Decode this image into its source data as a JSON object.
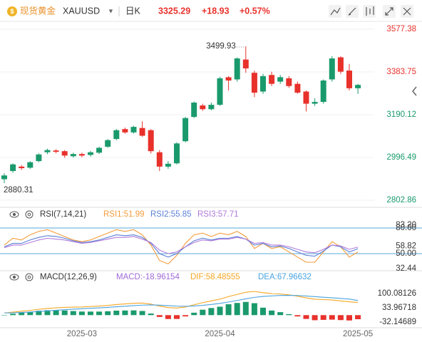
{
  "header": {
    "name": "现货黄金",
    "symbol": "XAUUSD",
    "period": "日K",
    "price": "3325.29",
    "change": "+18.93",
    "change_pct": "+0.57%"
  },
  "chart_data": [
    {
      "type": "candlestick",
      "categories": [
        null,
        null,
        null,
        null,
        null,
        null,
        null,
        null,
        null,
        "2025-03",
        null,
        null,
        null,
        null,
        null,
        null,
        null,
        null,
        null,
        null,
        null,
        null,
        null,
        null,
        null,
        "2025-04",
        null,
        null,
        null,
        null,
        null,
        null,
        null,
        null,
        null,
        null,
        null,
        null,
        null,
        null,
        null,
        "2025-05"
      ],
      "open": [
        2898,
        2935,
        2955,
        2950,
        2980,
        3020,
        3028,
        3025,
        3002,
        3012,
        3008,
        3018,
        3045,
        3080,
        3125,
        3110,
        3130,
        3120,
        3020,
        2955,
        2970,
        3070,
        3180,
        3232,
        3215,
        3235,
        3360,
        3350,
        3440,
        3380,
        3295,
        3370,
        3340,
        3355,
        3330,
        3295,
        3240,
        3248,
        3350,
        3450,
        3390,
        3310
      ],
      "high": [
        2925,
        2970,
        2962,
        2980,
        3015,
        3036,
        3034,
        3030,
        3018,
        3018,
        3026,
        3045,
        3080,
        3125,
        3132,
        3140,
        3160,
        3125,
        3030,
        2980,
        3065,
        3180,
        3250,
        3240,
        3245,
        3362,
        3365,
        3450,
        3499.93,
        3390,
        3375,
        3385,
        3370,
        3365,
        3340,
        3300,
        3265,
        3350,
        3455,
        3455,
        3420,
        3330
      ],
      "low": [
        2880.31,
        2928,
        2940,
        2945,
        2975,
        3012,
        3015,
        2995,
        2996,
        2998,
        3000,
        3012,
        3040,
        3075,
        3104,
        3105,
        3090,
        3015,
        2935,
        2945,
        2965,
        3065,
        3175,
        3208,
        3210,
        3230,
        3300,
        3340,
        3380,
        3270,
        3285,
        3320,
        3330,
        3312,
        3285,
        3205,
        3230,
        3240,
        3340,
        3375,
        3300,
        3285
      ],
      "close": [
        2915,
        2965,
        2948,
        2975,
        3010,
        3030,
        3022,
        3005,
        3012,
        3005,
        3020,
        3040,
        3075,
        3120,
        3110,
        3135,
        3095,
        3025,
        2955,
        2968,
        3060,
        3175,
        3245,
        3215,
        3235,
        3355,
        3345,
        3445,
        3400,
        3290,
        3365,
        3330,
        3360,
        3320,
        3290,
        3240,
        3248,
        3345,
        3445,
        3385,
        3310,
        3325.29
      ],
      "up_color": "#1a9a6c",
      "down_color": "#e8312b",
      "ylim": [
        2773.8,
        3612.9
      ],
      "yticks": [
        3577.38,
        3383.75,
        3190.12,
        2996.49,
        2802.86
      ],
      "grid": true
    },
    {
      "type": "line",
      "title": "RSI(7,14,21)",
      "series": [
        {
          "label": "RSI1:51.99",
          "color": "#f39c3c",
          "values": [
            60,
            68,
            66,
            72,
            76,
            78,
            74,
            70,
            66,
            64,
            66,
            70,
            74,
            78,
            76,
            78,
            72,
            60,
            42,
            38,
            48,
            62,
            72,
            74,
            70,
            74,
            72,
            76,
            70,
            56,
            62,
            56,
            58,
            52,
            46,
            40,
            40,
            52,
            64,
            58,
            46,
            51.99
          ]
        },
        {
          "label": "RSI2:55.85",
          "color": "#5b7fd6",
          "values": [
            58,
            62,
            62,
            66,
            69,
            71,
            70,
            68,
            65,
            63,
            64,
            66,
            69,
            72,
            71,
            72,
            69,
            62,
            50,
            46,
            50,
            58,
            65,
            68,
            66,
            68,
            68,
            70,
            67,
            60,
            62,
            58,
            59,
            56,
            52,
            48,
            47,
            53,
            60,
            58,
            52,
            55.85
          ]
        },
        {
          "label": "RSI3:57.71",
          "color": "#b07ad9",
          "values": [
            57,
            60,
            60,
            63,
            66,
            68,
            67,
            66,
            64,
            62,
            63,
            65,
            67,
            69,
            69,
            70,
            67,
            63,
            54,
            50,
            52,
            58,
            63,
            66,
            65,
            67,
            67,
            69,
            67,
            62,
            63,
            60,
            60,
            58,
            55,
            52,
            51,
            55,
            60,
            59,
            55,
            57.71
          ]
        }
      ],
      "ylim": [
        30,
        88.3
      ],
      "yticks": [
        {
          "value": 80,
          "label": "80.00"
        },
        {
          "value": 83.2,
          "label": "83.20"
        },
        58.82,
        {
          "value": 50,
          "label": "50.00"
        },
        32.44
      ],
      "hlines": [
        80,
        50
      ]
    },
    {
      "type": "macd",
      "title": "MACD(12,26,9)",
      "histogram": {
        "label": "MACD:-18.96154",
        "label_color": "#a06ad8",
        "values": [
          0,
          6.4,
          11.6,
          15.6,
          20.4,
          22.8,
          23,
          21.6,
          18.8,
          16.6,
          16.4,
          16.4,
          18,
          20.8,
          21.4,
          22,
          19.2,
          7.4,
          -8.4,
          -18,
          -17.6,
          -6,
          11.2,
          25,
          32.8,
          39,
          50.4,
          56.4,
          61.2,
          55.4,
          34.6,
          21.2,
          13.8,
          4.6,
          -6,
          -17.6,
          -23.6,
          -22,
          -20.8,
          -23,
          -24.8,
          -18.96154
        ]
      },
      "series": [
        {
          "label": "DIF:58.48555",
          "color": "#f5a623",
          "values": [
            10,
            14,
            18,
            22,
            27,
            31,
            34,
            36,
            37,
            38,
            40,
            42,
            45,
            49,
            52,
            55,
            56,
            51,
            42,
            35,
            33,
            38,
            48,
            58,
            66,
            74,
            86,
            96,
            106,
            110,
            104,
            100,
            98,
            94,
            88,
            80,
            74,
            72,
            70,
            66,
            62,
            58.48555
          ]
        },
        {
          "label": "DEA:67.96632",
          "color": "#4aa3df",
          "values": [
            10,
            10.8,
            12.2,
            14.2,
            16.8,
            19.6,
            22.5,
            25.2,
            27.6,
            29.7,
            31.8,
            33.8,
            36,
            38.6,
            41.3,
            44,
            46.4,
            47.3,
            46.2,
            44,
            41.8,
            41,
            42.4,
            45.5,
            49.6,
            54.5,
            60.8,
            67.8,
            75.4,
            82.3,
            86.7,
            89.4,
            91.1,
            91.7,
            91,
            88.8,
            85.8,
            83,
            80.4,
            77.5,
            74.4,
            67.96632
          ]
        }
      ],
      "ylim": [
        -58.6,
        149.7
      ],
      "yticks": [
        100.08126,
        33.96718,
        -32.14689
      ]
    }
  ]
}
